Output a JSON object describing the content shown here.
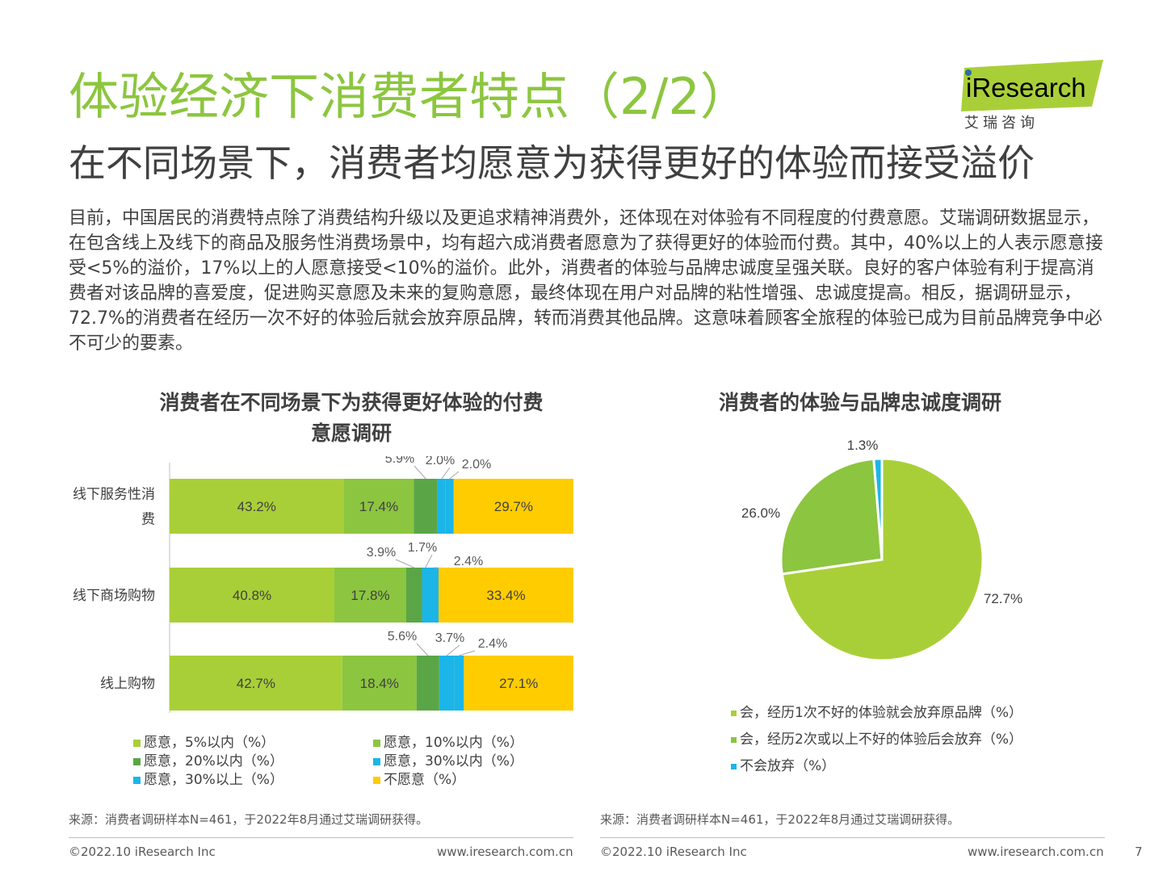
{
  "header": {
    "title": "体验经济下消费者特点（2/2）",
    "subtitle": "在不同场景下，消费者均愿意为获得更好的体验而接受溢价"
  },
  "logo": {
    "wordmark": "iResearch",
    "tagline": "艾 瑞 咨 询"
  },
  "body_text": "目前，中国居民的消费特点除了消费结构升级以及更追求精神消费外，还体现在对体验有不同程度的付费意愿。艾瑞调研数据显示，在包含线上及线下的商品及服务性消费场景中，均有超六成消费者愿意为了获得更好的体验而付费。其中，40%以上的人表示愿意接受<5%的溢价，17%以上的人愿意接受<10%的溢价。此外，消费者的体验与品牌忠诚度呈强关联。良好的客户体验有利于提高消费者对该品牌的喜爱度，促进购买意愿及未来的复购意愿，最终体现在用户对品牌的粘性增强、忠诚度提高。相反，据调研显示，72.7%的消费者在经历一次不好的体验后就会放弃原品牌，转而消费其他品牌。这意味着顾客全旅程的体验已成为目前品牌竞争中必不可少的要素。",
  "colors": {
    "title_green": "#8cc63f",
    "s1": "#a9cf38",
    "s2": "#8cc540",
    "s3": "#5aa646",
    "s4": "#1bb5e8",
    "s5": "#1bb5e8",
    "s6": "#ffcc00"
  },
  "chart_data": [
    {
      "type": "bar",
      "orientation": "horizontal-stacked-100",
      "title_line1": "消费者在不同场景下为获得更好体验的付费",
      "title_line2": "意愿调研",
      "categories": [
        "线下服务性消费",
        "线下商场购物",
        "线上购物"
      ],
      "category_lines": [
        [
          "线下服务性消",
          "费"
        ],
        [
          "线下商场购物"
        ],
        [
          "线上购物"
        ]
      ],
      "series": [
        {
          "name": "愿意，5%以内（%）",
          "values": [
            43.2,
            40.8,
            42.7
          ],
          "labels": [
            "43.2%",
            "40.8%",
            "42.7%"
          ]
        },
        {
          "name": "愿意，10%以内（%）",
          "values": [
            17.4,
            17.8,
            18.4
          ],
          "labels": [
            "17.4%",
            "17.8%",
            "18.4%"
          ]
        },
        {
          "name": "愿意，20%以内（%）",
          "values": [
            5.9,
            3.9,
            5.6
          ],
          "labels": [
            "5.9%",
            "3.9%",
            "5.6%"
          ]
        },
        {
          "name": "愿意，30%以内（%）",
          "values": [
            2.0,
            1.7,
            3.7
          ],
          "labels": [
            "2.0%",
            "1.7%",
            "3.7%"
          ]
        },
        {
          "name": "愿意，30%以上（%）",
          "values": [
            2.0,
            2.4,
            2.4
          ],
          "labels": [
            "2.0%",
            "2.4%",
            "2.4%"
          ]
        },
        {
          "name": "不愿意（%）",
          "values": [
            29.7,
            33.4,
            27.1
          ],
          "labels": [
            "29.7%",
            "33.4%",
            "27.1%"
          ]
        }
      ],
      "legend_position": "bottom",
      "source": "来源：消费者调研样本N=461，于2022年8月通过艾瑞调研获得。"
    },
    {
      "type": "pie",
      "title": "消费者的体验与品牌忠诚度调研",
      "slices": [
        {
          "name": "会，经历1次不好的体验就会放弃原品牌（%）",
          "value": 72.7,
          "label": "72.7%"
        },
        {
          "name": "会，经历2次或以上不好的体验后会放弃（%）",
          "value": 26.0,
          "label": "26.0%"
        },
        {
          "name": "不会放弃（%）",
          "value": 1.3,
          "label": "1.3%"
        }
      ],
      "slice_colors": [
        "#a9cf38",
        "#8cc540",
        "#1bb5e8"
      ],
      "legend_position": "bottom",
      "source": "来源：消费者调研样本N=461，于2022年8月通过艾瑞调研获得。"
    }
  ],
  "footer": {
    "copyright_left": "©2022.10 iResearch Inc",
    "url_left": "www.iresearch.com.cn",
    "copyright_right": "©2022.10 iResearch Inc",
    "url_right": "www.iresearch.com.cn",
    "page_number": "7"
  }
}
